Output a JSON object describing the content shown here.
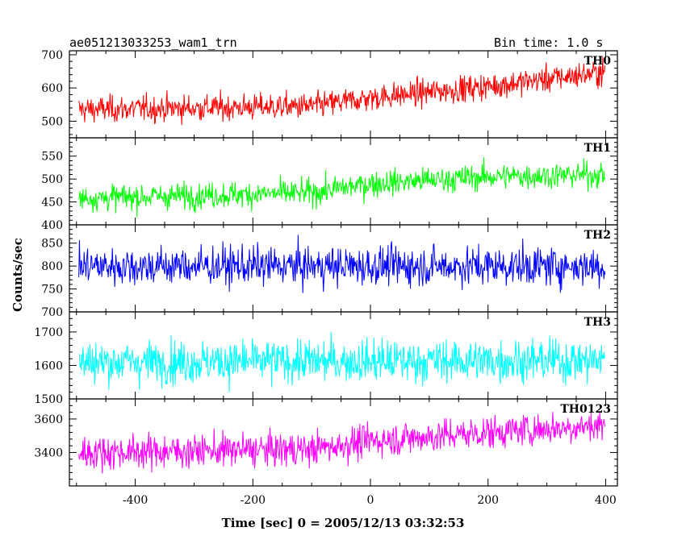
{
  "header": {
    "title": "ae051213033253_wam1_trn",
    "bin_time": "Bin time: 1.0 s"
  },
  "chart_data": {
    "type": "line",
    "ylabel": "Counts/sec",
    "xlabel": "Time [sec] 0 = 2005/12/13 03:32:53",
    "xlim": [
      -512,
      420
    ],
    "x_ticks": [
      -400,
      -200,
      0,
      200,
      400
    ],
    "x_range": [
      -496,
      399
    ],
    "panels": [
      {
        "name": "TH0",
        "color": "#ff0000",
        "ylim": [
          450,
          712
        ],
        "yticks": [
          500,
          600,
          700
        ],
        "trend": [
          {
            "x": -496,
            "y": 535
          },
          {
            "x": -100,
            "y": 545
          },
          {
            "x": 0,
            "y": 570
          },
          {
            "x": 200,
            "y": 605
          },
          {
            "x": 399,
            "y": 648
          }
        ],
        "noise": 28
      },
      {
        "name": "TH1",
        "color": "#00ff00",
        "ylim": [
          400,
          590
        ],
        "yticks": [
          400,
          450,
          500,
          550
        ],
        "trend": [
          {
            "x": -496,
            "y": 458
          },
          {
            "x": -100,
            "y": 470
          },
          {
            "x": 0,
            "y": 490
          },
          {
            "x": 200,
            "y": 505
          },
          {
            "x": 399,
            "y": 510
          }
        ],
        "noise": 20
      },
      {
        "name": "TH2",
        "color": "#0000ff",
        "ylim": [
          700,
          890
        ],
        "yticks": [
          700,
          750,
          800,
          850
        ],
        "trend": [
          {
            "x": -496,
            "y": 800
          },
          {
            "x": 399,
            "y": 800
          }
        ],
        "noise": 30
      },
      {
        "name": "TH3",
        "color": "#00ffff",
        "ylim": [
          1500,
          1760
        ],
        "yticks": [
          1500,
          1600,
          1700
        ],
        "trend": [
          {
            "x": -496,
            "y": 1610
          },
          {
            "x": 399,
            "y": 1615
          }
        ],
        "noise": 45
      },
      {
        "name": "TH0123",
        "color": "#ff00ff",
        "ylim": [
          3200,
          3720
        ],
        "yticks": [
          3400,
          3600
        ],
        "trend": [
          {
            "x": -496,
            "y": 3400
          },
          {
            "x": -100,
            "y": 3420
          },
          {
            "x": 0,
            "y": 3470
          },
          {
            "x": 200,
            "y": 3520
          },
          {
            "x": 399,
            "y": 3565
          }
        ],
        "noise": 70
      }
    ]
  }
}
